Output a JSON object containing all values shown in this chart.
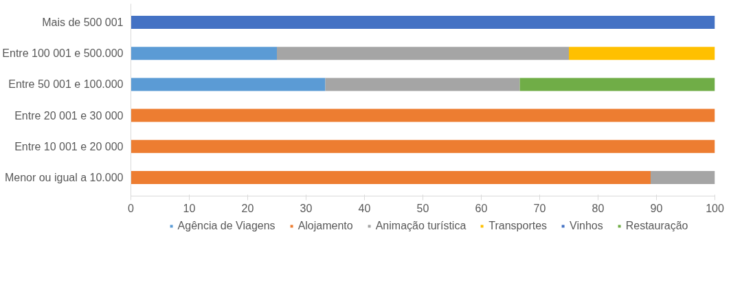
{
  "chart_data": {
    "type": "bar",
    "orientation": "horizontal",
    "stacked": true,
    "categories": [
      "Mais de 500 001",
      "Entre 100 001 e 500.000",
      "Entre 50 001 e 100.000",
      "Entre 20 001 e 30 000",
      "Entre 10 001 e 20 000",
      "Menor ou igual a 10.000"
    ],
    "series": [
      {
        "name": "Agência de Viagens",
        "color": "#5b9bd5",
        "values": [
          0,
          25,
          33.3,
          0,
          0,
          0
        ]
      },
      {
        "name": "Alojamento",
        "color": "#ed7d31",
        "values": [
          0,
          0,
          0,
          100,
          100,
          89
        ]
      },
      {
        "name": "Animação turística",
        "color": "#a5a5a5",
        "values": [
          0,
          50,
          33.3,
          0,
          0,
          11
        ]
      },
      {
        "name": "Transportes",
        "color": "#ffc000",
        "values": [
          0,
          25,
          0,
          0,
          0,
          0
        ]
      },
      {
        "name": "Vinhos",
        "color": "#4472c4",
        "values": [
          100,
          0,
          0,
          0,
          0,
          0
        ]
      },
      {
        "name": "Restauração",
        "color": "#70ad47",
        "values": [
          0,
          0,
          33.4,
          0,
          0,
          0
        ]
      }
    ],
    "xlim": [
      0,
      100
    ],
    "xticks": [
      0,
      10,
      20,
      30,
      40,
      50,
      60,
      70,
      80,
      90,
      100
    ],
    "grid": false,
    "legend": "bottom"
  }
}
